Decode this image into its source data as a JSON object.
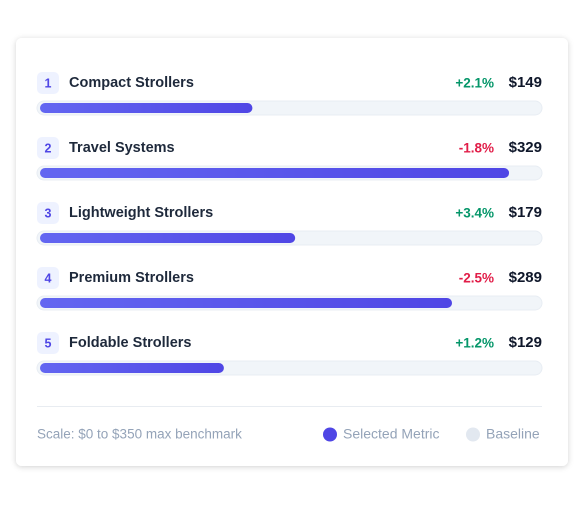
{
  "chart_data": {
    "type": "ranked-bar",
    "ranks": [
      1,
      2,
      3,
      4,
      5
    ],
    "categories": [
      "Compact Strollers",
      "Travel Systems",
      "Lightweight Strollers",
      "Premium Strollers",
      "Foldable Strollers"
    ],
    "series": [
      {
        "name": "Selected Metric",
        "color": "#4f46e5",
        "values": [
          149,
          329,
          179,
          289,
          129
        ],
        "value_labels": [
          "$149",
          "$329",
          "$179",
          "$289",
          "$129"
        ]
      }
    ],
    "changes": [
      2.1,
      -1.8,
      3.4,
      -2.5,
      1.2
    ],
    "change_labels": [
      "+2.1%",
      "-1.8%",
      "+3.4%",
      "-2.5%",
      "+1.2%"
    ],
    "positive_color": "#059669",
    "negative_color": "#e11d48",
    "baseline": {
      "name": "Baseline",
      "color": "#e2e8f0"
    },
    "xlim": [
      0,
      350
    ],
    "note": "Scale: $0 to $350 max benchmark"
  }
}
